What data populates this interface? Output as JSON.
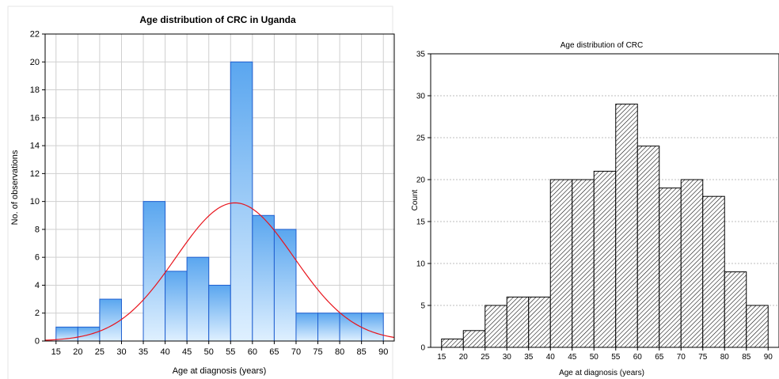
{
  "chart_data": [
    {
      "type": "bar",
      "title": "Age distribution of CRC in Uganda",
      "xlabel": "Age at diagnosis (years)",
      "ylabel": "No. of observations",
      "xlim": [
        12.5,
        92.5
      ],
      "ylim": [
        0,
        22
      ],
      "x_ticks": [
        15,
        20,
        25,
        30,
        35,
        40,
        45,
        50,
        55,
        60,
        65,
        70,
        75,
        80,
        85,
        90
      ],
      "y_ticks": [
        0,
        2,
        4,
        6,
        8,
        10,
        12,
        14,
        16,
        18,
        20,
        22
      ],
      "grid": true,
      "bin_width": 5,
      "bins_start": [
        15,
        20,
        25,
        30,
        35,
        40,
        45,
        50,
        55,
        60,
        65,
        70,
        75,
        80,
        85
      ],
      "values": [
        1,
        1,
        3,
        0,
        10,
        5,
        6,
        4,
        20,
        9,
        8,
        2,
        2,
        2,
        2
      ],
      "fit_curve": {
        "type": "normal",
        "peak": 9.9,
        "center": 56,
        "color": "#e8141c"
      },
      "colors": {
        "bar_fill_top": "#5aa6ef",
        "bar_fill_bottom": "#dff0ff",
        "bar_stroke": "#1f5fd0",
        "grid": "#cfcfcf",
        "background": "#ffffff"
      }
    },
    {
      "type": "bar",
      "title": "Age distribution of CRC",
      "xlabel": "Age at diagnosis (years)",
      "ylabel": "Count",
      "xlim": [
        12.5,
        92.5
      ],
      "ylim": [
        0,
        35
      ],
      "x_ticks": [
        15,
        20,
        25,
        30,
        35,
        40,
        45,
        50,
        55,
        60,
        65,
        70,
        75,
        80,
        85,
        90
      ],
      "y_ticks": [
        0,
        5,
        10,
        15,
        20,
        25,
        30,
        35
      ],
      "grid": true,
      "bin_width": 5,
      "bins_start": [
        15,
        20,
        25,
        30,
        35,
        40,
        45,
        50,
        55,
        60,
        65,
        70,
        75,
        80,
        85
      ],
      "values": [
        1,
        2,
        5,
        6,
        6,
        20,
        20,
        21,
        29,
        24,
        19,
        20,
        18,
        9,
        5
      ],
      "colors": {
        "hatch": "#000000",
        "bar_stroke": "#000000",
        "grid": "#bdbdbd"
      }
    }
  ]
}
